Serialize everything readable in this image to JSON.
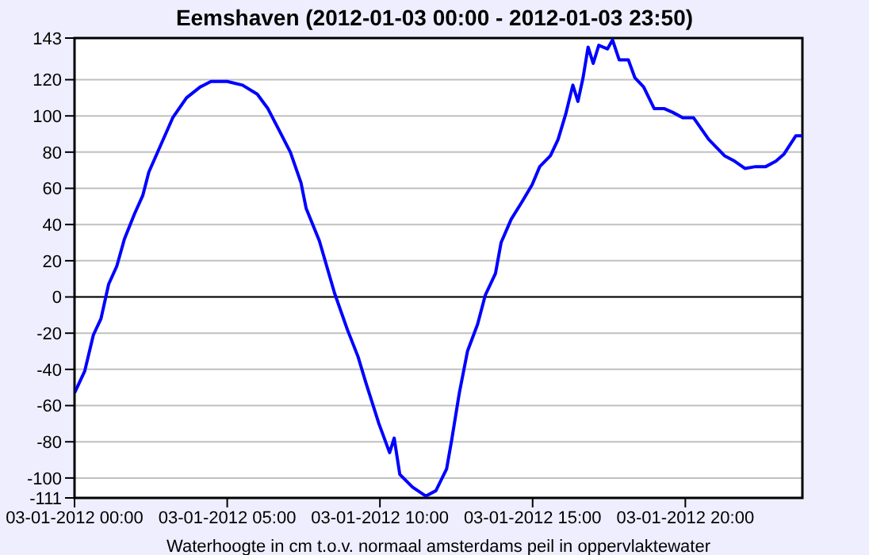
{
  "chart_data": {
    "type": "line",
    "title": "Eemshaven (2012-01-03 00:00 - 2012-01-03 23:50)",
    "xlabel": "Waterhoogte in cm t.o.v. normaal amsterdams peil in oppervlaktewater",
    "x": [
      "2012-01-03T00:00",
      "2012-01-03T00:20",
      "2012-01-03T00:37",
      "2012-01-03T00:52",
      "2012-01-03T01:07",
      "2012-01-03T01:23",
      "2012-01-03T01:38",
      "2012-01-03T01:58",
      "2012-01-03T02:14",
      "2012-01-03T02:26",
      "2012-01-03T03:13",
      "2012-01-03T03:40",
      "2012-01-03T04:07",
      "2012-01-03T04:28",
      "2012-01-03T05:00",
      "2012-01-03T05:30",
      "2012-01-03T05:59",
      "2012-01-03T06:20",
      "2012-01-03T06:42",
      "2012-01-03T07:04",
      "2012-01-03T07:25",
      "2012-01-03T07:35",
      "2012-01-03T08:01",
      "2012-01-03T08:31",
      "2012-01-03T08:56",
      "2012-01-03T09:17",
      "2012-01-03T09:32",
      "2012-01-03T09:58",
      "2012-01-03T10:19",
      "2012-01-03T10:28",
      "2012-01-03T10:39",
      "2012-01-03T11:04",
      "2012-01-03T11:30",
      "2012-01-03T11:50",
      "2012-01-03T12:11",
      "2012-01-03T12:21",
      "2012-01-03T12:36",
      "2012-01-03T12:52",
      "2012-01-03T13:12",
      "2012-01-03T13:27",
      "2012-01-03T13:47",
      "2012-01-03T13:58",
      "2012-01-03T14:18",
      "2012-01-03T14:38",
      "2012-01-03T14:59",
      "2012-01-03T15:14",
      "2012-01-03T15:35",
      "2012-01-03T15:50",
      "2012-01-03T16:05",
      "2012-01-03T16:19",
      "2012-01-03T16:29",
      "2012-01-03T16:39",
      "2012-01-03T16:49",
      "2012-01-03T16:59",
      "2012-01-03T17:10",
      "2012-01-03T17:27",
      "2012-01-03T17:37",
      "2012-01-03T17:50",
      "2012-01-03T18:08",
      "2012-01-03T18:21",
      "2012-01-03T18:38",
      "2012-01-03T18:59",
      "2012-01-03T19:19",
      "2012-01-03T19:35",
      "2012-01-03T19:55",
      "2012-01-03T20:16",
      "2012-01-03T20:46",
      "2012-01-03T21:17",
      "2012-01-03T21:37",
      "2012-01-03T21:57",
      "2012-01-03T22:18",
      "2012-01-03T22:38",
      "2012-01-03T22:58",
      "2012-01-03T23:14",
      "2012-01-03T23:37",
      "2012-01-03T23:50"
    ],
    "series": [
      {
        "color": "#0000ff",
        "values": [
          -53,
          -41,
          -21,
          -12,
          7,
          17,
          32,
          46,
          56,
          69,
          99,
          110,
          116,
          119,
          119,
          117,
          112,
          104,
          92,
          80,
          63,
          49,
          31,
          2,
          -18,
          -33,
          -47,
          -70,
          -86,
          -78,
          -98,
          -105,
          -110,
          -107,
          -95,
          -79,
          -53,
          -30,
          -15,
          1,
          13,
          30,
          43,
          52,
          62,
          72,
          78,
          87,
          101,
          117,
          108,
          121,
          138,
          129,
          139,
          137,
          142,
          131,
          131,
          121,
          116,
          104,
          104,
          102,
          99,
          99,
          87,
          78,
          75,
          71,
          72,
          72,
          75,
          79,
          89,
          89
        ]
      }
    ],
    "xlim": [
      "2012-01-03T00:00",
      "2012-01-03T23:50"
    ],
    "xticks": [
      {
        "value": "2012-01-03T00:00",
        "label": "03-01-2012 00:00"
      },
      {
        "value": "2012-01-03T05:00",
        "label": "03-01-2012 05:00"
      },
      {
        "value": "2012-01-03T10:00",
        "label": "03-01-2012 10:00"
      },
      {
        "value": "2012-01-03T15:00",
        "label": "03-01-2012 15:00"
      },
      {
        "value": "2012-01-03T20:00",
        "label": "03-01-2012 20:00"
      }
    ],
    "ylim": [
      -111,
      143
    ],
    "yticks": [
      -111,
      -100,
      -80,
      -60,
      -40,
      -20,
      0,
      20,
      40,
      60,
      80,
      100,
      120,
      143
    ],
    "ref_lines": [
      {
        "axis": "y",
        "value": 0,
        "color": "#000000"
      }
    ],
    "grid": "y",
    "marker": "none",
    "line_style": "solid",
    "legend": false
  }
}
